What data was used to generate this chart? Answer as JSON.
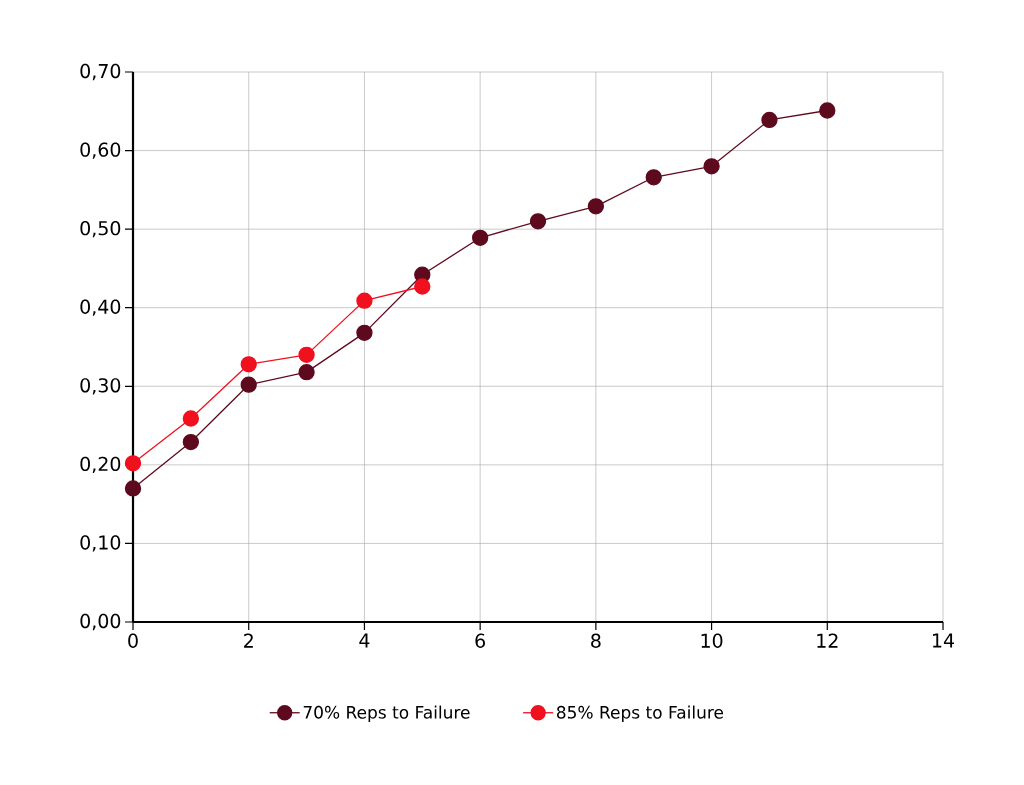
{
  "chart_data": {
    "type": "line",
    "series": [
      {
        "name": "70% Reps to Failure",
        "color": "#5e0a1e",
        "x": [
          0,
          1,
          2,
          3,
          4,
          5,
          6,
          7,
          8,
          9,
          10,
          11,
          12
        ],
        "values": [
          0.17,
          0.229,
          0.302,
          0.318,
          0.368,
          0.442,
          0.489,
          0.51,
          0.529,
          0.566,
          0.58,
          0.639,
          0.651
        ]
      },
      {
        "name": "85% Reps to Failure",
        "color": "#f0101e",
        "x": [
          0,
          1,
          2,
          3,
          4,
          5
        ],
        "values": [
          0.202,
          0.259,
          0.328,
          0.34,
          0.409,
          0.427
        ]
      }
    ],
    "xlim": [
      0,
      14
    ],
    "xticks": [
      0,
      2,
      4,
      6,
      8,
      10,
      12,
      14
    ],
    "ylim": [
      0,
      0.7
    ],
    "yticks": [
      {
        "value": 0,
        "label": "0,00"
      },
      {
        "value": 0.1,
        "label": "0,10"
      },
      {
        "value": 0.2,
        "label": "0,20"
      },
      {
        "value": 0.3,
        "label": "0,30"
      },
      {
        "value": 0.4,
        "label": "0,40"
      },
      {
        "value": 0.5,
        "label": "0,50"
      },
      {
        "value": 0.6,
        "label": "0,60"
      },
      {
        "value": 0.7,
        "label": "0,70"
      }
    ],
    "grid": true,
    "legend": "bottom",
    "marker": "circle",
    "line_style": "solid"
  }
}
